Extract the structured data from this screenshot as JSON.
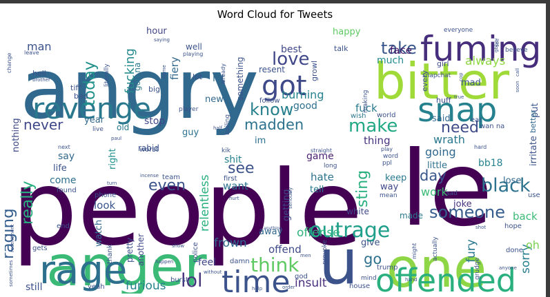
{
  "chart_data": {
    "type": "wordcloud",
    "title": "Word Cloud for Tweets",
    "words": [
      {
        "text": "people",
        "weight": 1.0,
        "color": "#440154"
      },
      {
        "text": "angry",
        "weight": 0.95,
        "color": "#31688e"
      },
      {
        "text": "anger",
        "weight": 0.6,
        "color": "#3aba76"
      },
      {
        "text": "one",
        "weight": 0.55,
        "color": "#8ed645"
      },
      {
        "text": "bitter",
        "weight": 0.52,
        "color": "#a0da39"
      },
      {
        "text": "fuming",
        "weight": 0.42,
        "color": "#472e7c"
      },
      {
        "text": "rage",
        "weight": 0.4,
        "color": "#2d708e"
      },
      {
        "text": "offended",
        "weight": 0.35,
        "color": "#2ab07f"
      },
      {
        "text": "u",
        "weight": 0.55,
        "color": "#3b528b"
      },
      {
        "text": "le",
        "weight": 0.5,
        "color": "#440154"
      },
      {
        "text": "revenge",
        "weight": 0.25,
        "color": "#2a788e"
      },
      {
        "text": "snap",
        "weight": 0.32,
        "color": "#26818e"
      },
      {
        "text": "got",
        "weight": 0.25,
        "color": "#3e4989"
      },
      {
        "text": "time",
        "weight": 0.28,
        "color": "#3b528b"
      },
      {
        "text": "outrage",
        "weight": 0.2,
        "color": "#1f9e89"
      },
      {
        "text": "think",
        "weight": 0.18,
        "color": "#5ec962"
      },
      {
        "text": "lol",
        "weight": 0.17,
        "color": "#46337e"
      },
      {
        "text": "make",
        "weight": 0.17,
        "color": "#22a884"
      },
      {
        "text": "black",
        "weight": 0.17,
        "color": "#2c728e"
      },
      {
        "text": "someone",
        "weight": 0.16,
        "color": "#365c8d"
      },
      {
        "text": "raging",
        "weight": 0.14,
        "color": "#355f8d"
      },
      {
        "text": "really",
        "weight": 0.16,
        "color": "#29af7f"
      },
      {
        "text": "today",
        "weight": 0.14,
        "color": "#21918c"
      },
      {
        "text": "love",
        "weight": 0.16,
        "color": "#3f4788"
      },
      {
        "text": "take",
        "weight": 0.14,
        "color": "#39568c"
      },
      {
        "text": "know",
        "weight": 0.14,
        "color": "#27808e"
      },
      {
        "text": "madden",
        "weight": 0.12,
        "color": "#2c728e"
      },
      {
        "text": "never",
        "weight": 0.12,
        "color": "#3f4788"
      },
      {
        "text": "need",
        "weight": 0.12,
        "color": "#3e4c8a"
      },
      {
        "text": "go",
        "weight": 0.12,
        "color": "#2d708e"
      },
      {
        "text": "sting",
        "weight": 0.12,
        "color": "#29af7f"
      },
      {
        "text": "even",
        "weight": 0.11,
        "color": "#3b528b"
      },
      {
        "text": "see",
        "weight": 0.11,
        "color": "#3b528b"
      },
      {
        "text": "day",
        "weight": 0.11,
        "color": "#39568c"
      },
      {
        "text": "fucking",
        "weight": 0.1,
        "color": "#238a8d"
      },
      {
        "text": "always",
        "weight": 0.09,
        "color": "#8fd744"
      },
      {
        "text": "relentless",
        "weight": 0.09,
        "color": "#2ab07f"
      },
      {
        "text": "frown",
        "weight": 0.08,
        "color": "#31688e"
      },
      {
        "text": "furious",
        "weight": 0.08,
        "color": "#26828e"
      },
      {
        "text": "insult",
        "weight": 0.08,
        "color": "#472f7d"
      },
      {
        "text": "fury",
        "weight": 0.08,
        "color": "#2a788e"
      },
      {
        "text": "sorry",
        "weight": 0.08,
        "color": "#277f8e"
      },
      {
        "text": "offense",
        "weight": 0.08,
        "color": "#2fb47c"
      },
      {
        "text": "oh",
        "weight": 0.08,
        "color": "#7ad151"
      },
      {
        "text": "work",
        "weight": 0.08,
        "color": "#3aba76"
      },
      {
        "text": "wrath",
        "weight": 0.08,
        "color": "#2a788e"
      },
      {
        "text": "going",
        "weight": 0.08,
        "color": "#31688e"
      },
      {
        "text": "burning",
        "weight": 0.08,
        "color": "#26828e"
      },
      {
        "text": "man",
        "weight": 0.08,
        "color": "#3b528b"
      },
      {
        "text": "fiery",
        "weight": 0.07,
        "color": "#31688e"
      },
      {
        "text": "hate",
        "weight": 0.07,
        "color": "#2c728e"
      },
      {
        "text": "fuck",
        "weight": 0.07,
        "color": "#2a788e"
      },
      {
        "text": "thing",
        "weight": 0.07,
        "color": "#46327e"
      },
      {
        "text": "back",
        "weight": 0.07,
        "color": "#3aba76"
      },
      {
        "text": "want",
        "weight": 0.07,
        "color": "#2c728e"
      },
      {
        "text": "look",
        "weight": 0.07,
        "color": "#39568c"
      },
      {
        "text": "offend",
        "weight": 0.07,
        "color": "#3e4989"
      },
      {
        "text": "face",
        "weight": 0.07,
        "color": "#48186a"
      },
      {
        "text": "feel",
        "weight": 0.07,
        "color": "#3f4788"
      },
      {
        "text": "still",
        "weight": 0.07,
        "color": "#3b528b"
      },
      {
        "text": "say",
        "weight": 0.07,
        "color": "#31688e"
      },
      {
        "text": "come",
        "weight": 0.07,
        "color": "#2d708e"
      },
      {
        "text": "shit",
        "weight": 0.07,
        "color": "#26828e"
      },
      {
        "text": "game",
        "weight": 0.07,
        "color": "#481f70"
      },
      {
        "text": "bb18",
        "weight": 0.07,
        "color": "#26828e"
      },
      {
        "text": "stop",
        "weight": 0.06,
        "color": "#3f4788"
      },
      {
        "text": "let",
        "weight": 0.06,
        "color": "#31688e"
      },
      {
        "text": "good",
        "weight": 0.06,
        "color": "#2d708e"
      },
      {
        "text": "best",
        "weight": 0.06,
        "color": "#3f4788"
      },
      {
        "text": "much",
        "weight": 0.06,
        "color": "#238a8d"
      },
      {
        "text": "hour",
        "weight": 0.06,
        "color": "#414487"
      },
      {
        "text": "year",
        "weight": 0.06,
        "color": "#31688e"
      },
      {
        "text": "new",
        "weight": 0.06,
        "color": "#31688e"
      },
      {
        "text": "guy",
        "weight": 0.06,
        "color": "#2c728e"
      },
      {
        "text": "im",
        "weight": 0.06,
        "color": "#2d708e"
      },
      {
        "text": "nothing",
        "weight": 0.06,
        "color": "#3e4989"
      },
      {
        "text": "getting",
        "weight": 0.06,
        "color": "#3e4989"
      },
      {
        "text": "life",
        "weight": 0.06,
        "color": "#3b528b"
      },
      {
        "text": "tell",
        "weight": 0.06,
        "color": "#2a788e"
      },
      {
        "text": "keep",
        "weight": 0.06,
        "color": "#2a788e"
      },
      {
        "text": "way",
        "weight": 0.06,
        "color": "#3f4788"
      },
      {
        "text": "little",
        "weight": 0.06,
        "color": "#2d708e"
      },
      {
        "text": "joke",
        "weight": 0.06,
        "color": "#46327e"
      },
      {
        "text": "give",
        "weight": 0.06,
        "color": "#3b528b"
      },
      {
        "text": "away",
        "weight": 0.06,
        "color": "#31688e"
      },
      {
        "text": "watch",
        "weight": 0.06,
        "color": "#31688e"
      },
      {
        "text": "right",
        "weight": 0.06,
        "color": "#21918c"
      },
      {
        "text": "irritate",
        "weight": 0.06,
        "color": "#3b528b"
      },
      {
        "text": "put",
        "weight": 0.06,
        "color": "#39568c"
      },
      {
        "text": "said",
        "weight": 0.06,
        "color": "#31688e"
      },
      {
        "text": "happy",
        "weight": 0.05,
        "color": "#5ec962"
      },
      {
        "text": "mad",
        "weight": 0.05,
        "color": "#3b528b"
      },
      {
        "text": "lose",
        "weight": 0.05,
        "color": "#31688e"
      },
      {
        "text": "resent",
        "weight": 0.05,
        "color": "#3b528b"
      },
      {
        "text": "something",
        "weight": 0.05,
        "color": "#3b528b"
      },
      {
        "text": "white",
        "weight": 0.05,
        "color": "#3f4788"
      },
      {
        "text": "made",
        "weight": 0.05,
        "color": "#2a788e"
      },
      {
        "text": "another",
        "weight": 0.05,
        "color": "#3f4788"
      },
      {
        "text": "pretty",
        "weight": 0.05,
        "color": "#3b528b"
      },
      {
        "text": "rabid",
        "weight": 0.05,
        "color": "#3b528b"
      },
      {
        "text": "old",
        "weight": 0.05,
        "color": "#2a788e"
      },
      {
        "text": "well",
        "weight": 0.05,
        "color": "#3b528b"
      },
      {
        "text": "gon na",
        "weight": 0.05,
        "color": "#2a788e"
      },
      {
        "text": "better",
        "weight": 0.05,
        "color": "#31688e"
      },
      {
        "text": "every",
        "weight": 0.05,
        "color": "#3b528b"
      },
      {
        "text": "huff",
        "weight": 0.04,
        "color": "#3e4989"
      },
      {
        "text": "girl",
        "weight": 0.04,
        "color": "#3e4989"
      },
      {
        "text": "hell",
        "weight": 0.04,
        "color": "#3b528b"
      },
      {
        "text": "bad",
        "weight": 0.04,
        "color": "#3b528b"
      },
      {
        "text": "tiff",
        "weight": 0.04,
        "color": "#3b528b"
      },
      {
        "text": "big",
        "weight": 0.04,
        "color": "#3b528b"
      },
      {
        "text": "lot",
        "weight": 0.04,
        "color": "#3b528b"
      },
      {
        "text": "talk",
        "weight": 0.04,
        "color": "#3b528b"
      },
      {
        "text": "growl",
        "weight": 0.04,
        "color": "#3b528b"
      },
      {
        "text": "follow",
        "weight": 0.04,
        "color": "#3b528b"
      },
      {
        "text": "world",
        "weight": 0.04,
        "color": "#3b528b"
      },
      {
        "text": "wish",
        "weight": 0.04,
        "color": "#2a788e"
      },
      {
        "text": "eat",
        "weight": 0.04,
        "color": "#3b528b"
      },
      {
        "text": "wan na",
        "weight": 0.04,
        "color": "#3b528b"
      },
      {
        "text": "worst",
        "weight": 0.04,
        "color": "#3b528b"
      },
      {
        "text": "team",
        "weight": 0.04,
        "color": "#3b528b"
      },
      {
        "text": "first",
        "weight": 0.04,
        "color": "#3b528b"
      },
      {
        "text": "phone",
        "weight": 0.04,
        "color": "#3b528b"
      },
      {
        "text": "found",
        "weight": 0.04,
        "color": "#3b528b"
      },
      {
        "text": "end",
        "weight": 0.04,
        "color": "#3b528b"
      },
      {
        "text": "gets",
        "weight": 0.04,
        "color": "#3b528b"
      },
      {
        "text": "thank",
        "weight": 0.04,
        "color": "#3b528b"
      },
      {
        "text": "damn",
        "weight": 0.04,
        "color": "#3b528b"
      },
      {
        "text": "police",
        "weight": 0.04,
        "color": "#3b528b"
      },
      {
        "text": "burst",
        "weight": 0.04,
        "color": "#3b528b"
      },
      {
        "text": "yeah",
        "weight": 0.04,
        "color": "#3b528b"
      },
      {
        "text": "god",
        "weight": 0.04,
        "color": "#3b528b"
      },
      {
        "text": "house",
        "weight": 0.04,
        "color": "#3b528b"
      },
      {
        "text": "trump",
        "weight": 0.04,
        "color": "#3b528b"
      },
      {
        "text": "done",
        "weight": 0.04,
        "color": "#3b528b"
      },
      {
        "text": "hope",
        "weight": 0.04,
        "color": "#3b528b"
      },
      {
        "text": "use",
        "weight": 0.04,
        "color": "#3b528b"
      },
      {
        "text": "everyone",
        "weight": 0.04,
        "color": "#3b528b"
      },
      {
        "text": "believe",
        "weight": 0.04,
        "color": "#3b528b"
      },
      {
        "text": "snapchat",
        "weight": 0.04,
        "color": "#3b528b"
      },
      {
        "text": "provoke",
        "weight": 0.04,
        "color": "#3b528b"
      },
      {
        "text": "grudge",
        "weight": 0.04,
        "color": "#3b528b"
      },
      {
        "text": "actually",
        "weight": 0.04,
        "color": "#3b528b"
      },
      {
        "text": "boiling",
        "weight": 0.04,
        "color": "#3b528b"
      },
      {
        "text": "literally",
        "weight": 0.04,
        "color": "#3b528b"
      },
      {
        "text": "making",
        "weight": 0.04,
        "color": "#3b528b"
      },
      {
        "text": "player",
        "weight": 0.04,
        "color": "#3b528b"
      },
      {
        "text": "live",
        "weight": 0.04,
        "color": "#3b528b"
      },
      {
        "text": "kik",
        "weight": 0.04,
        "color": "#3b528b"
      },
      {
        "text": "ppl",
        "weight": 0.04,
        "color": "#3b528b"
      },
      {
        "text": "word",
        "weight": 0.04,
        "color": "#3b528b"
      },
      {
        "text": "long",
        "weight": 0.04,
        "color": "#3b528b"
      },
      {
        "text": "mean",
        "weight": 0.04,
        "color": "#3b528b"
      },
      {
        "text": "sad",
        "weight": 0.04,
        "color": "#3b528b"
      },
      {
        "text": "mind",
        "weight": 0.04,
        "color": "#3b528b"
      },
      {
        "text": "hard",
        "weight": 0.03,
        "color": "#3b528b"
      },
      {
        "text": "play",
        "weight": 0.03,
        "color": "#3b528b"
      },
      {
        "text": "straight",
        "weight": 0.03,
        "color": "#3b528b"
      },
      {
        "text": "next",
        "weight": 0.03,
        "color": "#3b528b"
      },
      {
        "text": "incense",
        "weight": 0.03,
        "color": "#3b528b"
      },
      {
        "text": "resentment",
        "weight": 0.03,
        "color": "#3b528b"
      },
      {
        "text": "hurt",
        "weight": 0.03,
        "color": "#3b528b"
      },
      {
        "text": "seriously",
        "weight": 0.03,
        "color": "#3b528b"
      },
      {
        "text": "already",
        "weight": 0.03,
        "color": "#3b528b"
      },
      {
        "text": "playing",
        "weight": 0.03,
        "color": "#3b528b"
      },
      {
        "text": "change",
        "weight": 0.03,
        "color": "#3b528b"
      },
      {
        "text": "leave",
        "weight": 0.03,
        "color": "#3b528b"
      },
      {
        "text": "brother",
        "weight": 0.03,
        "color": "#3b528b"
      },
      {
        "text": "saying",
        "weight": 0.03,
        "color": "#3b528b"
      },
      {
        "text": "home",
        "weight": 0.03,
        "color": "#3b528b"
      },
      {
        "text": "self",
        "weight": 0.03,
        "color": "#3b528b"
      },
      {
        "text": "call",
        "weight": 0.03,
        "color": "#3b528b"
      },
      {
        "text": "soon",
        "weight": 0.03,
        "color": "#3b528b"
      },
      {
        "text": "cop",
        "weight": 0.03,
        "color": "#3b528b"
      },
      {
        "text": "true",
        "weight": 0.03,
        "color": "#3b528b"
      },
      {
        "text": "half",
        "weight": 0.03,
        "color": "#3b528b"
      },
      {
        "text": "paul",
        "weight": 0.03,
        "color": "#3b528b"
      },
      {
        "text": "turn",
        "weight": 0.03,
        "color": "#3b528b"
      },
      {
        "text": "might",
        "weight": 0.03,
        "color": "#3b528b"
      },
      {
        "text": "shot",
        "weight": 0.03,
        "color": "#3b528b"
      },
      {
        "text": "anyone",
        "weight": 0.03,
        "color": "#3b528b"
      },
      {
        "text": "hand",
        "weight": 0.03,
        "color": "#3b528b"
      },
      {
        "text": "order",
        "weight": 0.03,
        "color": "#3b528b"
      },
      {
        "text": "without",
        "weight": 0.03,
        "color": "#3b528b"
      },
      {
        "text": "happen",
        "weight": 0.03,
        "color": "#3b528b"
      },
      {
        "text": "show",
        "weight": 0.03,
        "color": "#3b528b"
      },
      {
        "text": "help",
        "weight": 0.03,
        "color": "#3b528b"
      },
      {
        "text": "anything",
        "weight": 0.03,
        "color": "#3b528b"
      },
      {
        "text": "men",
        "weight": 0.03,
        "color": "#3b528b"
      },
      {
        "text": "sometimes",
        "weight": 0.03,
        "color": "#3b528b"
      },
      {
        "text": "gbbo",
        "weight": 0.03,
        "color": "#3b528b"
      }
    ]
  }
}
